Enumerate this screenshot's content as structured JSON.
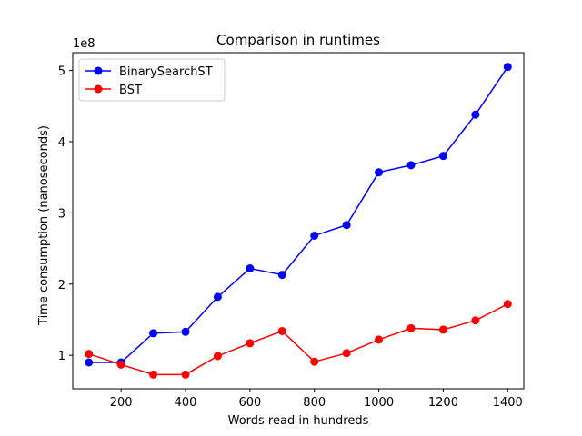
{
  "chart_data": {
    "type": "line",
    "title": "Comparison in runtimes",
    "xlabel": "Words read in hundreds",
    "ylabel": "Time consumption (nanoseconds)",
    "y_scale_label": "1e8",
    "x": [
      100,
      200,
      300,
      400,
      500,
      600,
      700,
      800,
      900,
      1000,
      1100,
      1200,
      1300,
      1400
    ],
    "xlim": [
      50,
      1450
    ],
    "ylim": [
      0.53,
      5.25
    ],
    "x_ticks": [
      200,
      400,
      600,
      800,
      1000,
      1200,
      1400
    ],
    "y_ticks": [
      1,
      2,
      3,
      4,
      5
    ],
    "grid": false,
    "legend_position": "top-left",
    "series": [
      {
        "name": "BinarySearchST",
        "color": "#0000ff",
        "values": [
          0.9,
          0.9,
          1.31,
          1.33,
          1.82,
          2.22,
          2.13,
          2.68,
          2.83,
          3.57,
          3.67,
          3.8,
          4.38,
          5.05
        ]
      },
      {
        "name": "BST",
        "color": "#ff0000",
        "values": [
          1.02,
          0.87,
          0.73,
          0.73,
          0.99,
          1.17,
          1.34,
          0.91,
          1.03,
          1.22,
          1.38,
          1.36,
          1.49,
          1.72
        ]
      }
    ]
  }
}
